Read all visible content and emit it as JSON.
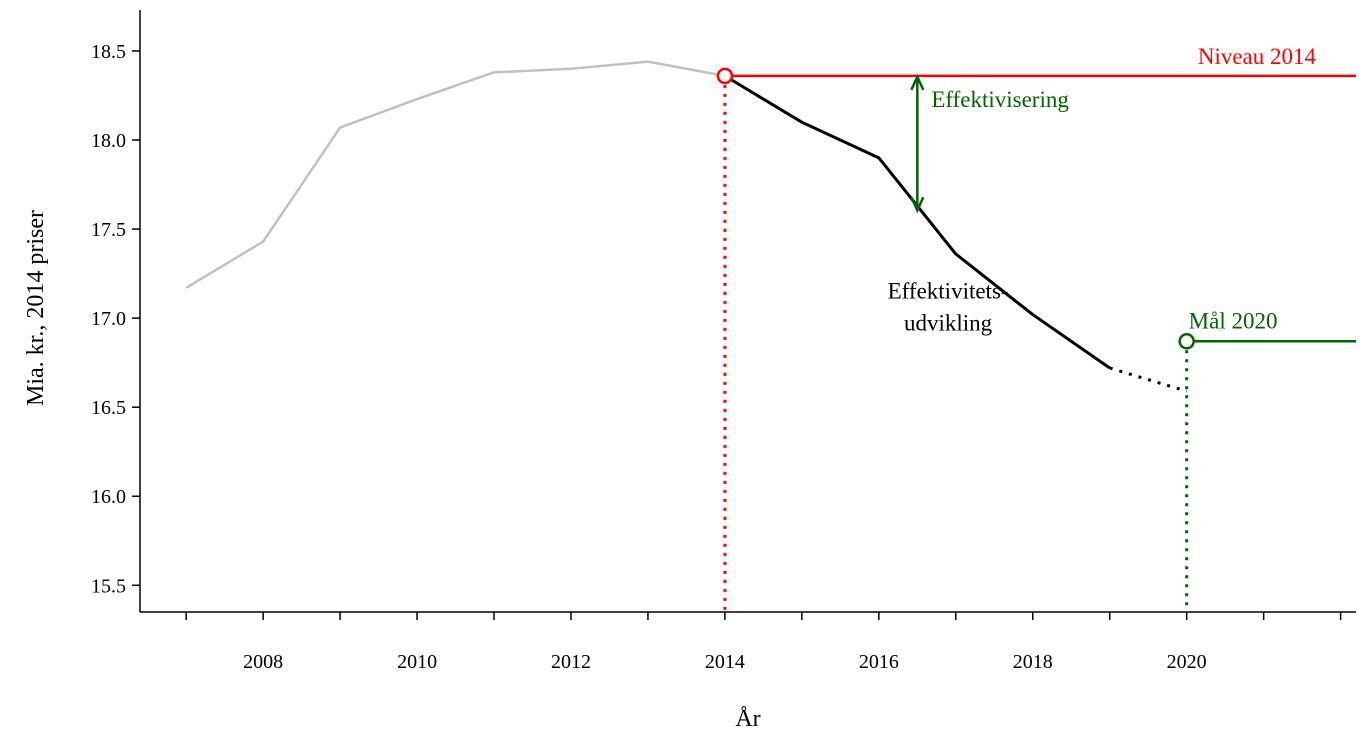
{
  "chart_data": {
    "type": "line",
    "title": "",
    "xlabel": "År",
    "ylabel": "Mia. kr., 2014 priser",
    "xlim": [
      2006.4,
      2022.2
    ],
    "ylim": [
      15.35,
      18.73
    ],
    "x_ticks": [
      2008,
      2010,
      2012,
      2014,
      2016,
      2018,
      2020
    ],
    "y_ticks": [
      15.5,
      16.0,
      16.5,
      17.0,
      17.5,
      18.0,
      18.5
    ],
    "grid": false,
    "series": [
      {
        "x": [
          2007,
          2008,
          2009,
          2010,
          2011,
          2012,
          2013,
          2014
        ],
        "y": [
          17.17,
          17.43,
          18.07,
          18.23,
          18.38,
          18.4,
          18.44,
          18.36
        ],
        "color": "#c0c0c0",
        "style": "solid"
      },
      {
        "x": [
          2014,
          2015,
          2016,
          2017,
          2018,
          2019
        ],
        "y": [
          18.36,
          18.1,
          17.9,
          17.36,
          17.02,
          16.72
        ],
        "color": "#000000",
        "style": "solid"
      },
      {
        "x": [
          2019,
          2020
        ],
        "y": [
          16.72,
          16.59
        ],
        "color": "#000000",
        "style": "dotted"
      }
    ],
    "reference_lines": [
      {
        "label": "Niveau 2014",
        "y": 18.36,
        "x_start": 2014,
        "color": "#ff0000"
      },
      {
        "label": "Mål 2020",
        "y": 16.87,
        "x_start": 2020,
        "color": "#006400"
      }
    ],
    "vertical_lines": [
      {
        "x": 2014,
        "y_top": 18.36,
        "color": "#ff0000",
        "style": "dotted"
      },
      {
        "x": 2020,
        "y_top": 16.87,
        "color": "#006400",
        "style": "dotted"
      }
    ],
    "markers": [
      {
        "x": 2014,
        "y": 18.36,
        "color": "#ff0000",
        "shape": "open-circle"
      },
      {
        "x": 2020,
        "y": 16.87,
        "color": "#006400",
        "shape": "open-circle"
      }
    ],
    "arrow": {
      "x": 2016.5,
      "y_top": 18.36,
      "y_bottom": 17.6,
      "color": "#006400",
      "label": "Effektivisering"
    },
    "annotations": [
      {
        "text_lines": [
          "Effektivitets-",
          "udvikling"
        ],
        "x": 2016.9,
        "y": 17.11,
        "color": "#000000"
      }
    ]
  }
}
